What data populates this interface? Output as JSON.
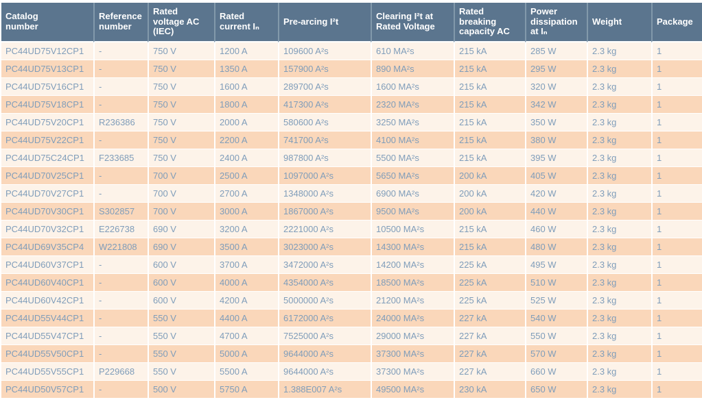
{
  "colors": {
    "header_bg": "#5B758E",
    "header_divider": "#8299AB",
    "header_text": "#FFFFFF",
    "row_light": "#FDF3E9",
    "row_dark": "#FAD7BA",
    "cell_text": "#7F9DBA"
  },
  "table": {
    "columns": [
      "Catalog number",
      "Reference number",
      "Rated voltage AC (IEC)",
      "Rated current Iₙ",
      "Pre-arcing I²t",
      "Clearing I²t at Rated Voltage",
      "Rated breaking capacity AC",
      "Power dissipation at Iₙ",
      "Weight",
      "Package"
    ],
    "rows": [
      [
        "PC44UD75V12CP1",
        "-",
        "750 V",
        "1200 A",
        "109600 A²s",
        "610 MA²s",
        "215 kA",
        "285 W",
        "2.3 kg",
        "1"
      ],
      [
        "PC44UD75V13CP1",
        "-",
        "750 V",
        "1350 A",
        "157900 A²s",
        "890 MA²s",
        "215 kA",
        "295 W",
        "2.3 kg",
        "1"
      ],
      [
        "PC44UD75V16CP1",
        "-",
        "750 V",
        "1600 A",
        "289700 A²s",
        "1600 MA²s",
        "215 kA",
        "320 W",
        "2.3 kg",
        "1"
      ],
      [
        "PC44UD75V18CP1",
        "-",
        "750 V",
        "1800 A",
        "417300 A²s",
        "2320 MA²s",
        "215 kA",
        "342 W",
        "2.3 kg",
        "1"
      ],
      [
        "PC44UD75V20CP1",
        "R236386",
        "750 V",
        "2000 A",
        "580600 A²s",
        "3250 MA²s",
        "215 kA",
        "350 W",
        "2.3 kg",
        "1"
      ],
      [
        "PC44UD75V22CP1",
        "-",
        "750 V",
        "2200 A",
        "741700 A²s",
        "4100 MA²s",
        "215 kA",
        "380 W",
        "2.3 kg",
        "1"
      ],
      [
        "PC44UD75C24CP1",
        "F233685",
        "750 V",
        "2400 A",
        "987800 A²s",
        "5500 MA²s",
        "215 kA",
        "395 W",
        "2.3 kg",
        "1"
      ],
      [
        "PC44UD70V25CP1",
        "-",
        "700 V",
        "2500 A",
        "1097000 A²s",
        "5650 MA²s",
        "200 kA",
        "405 W",
        "2.3 kg",
        "1"
      ],
      [
        "PC44UD70V27CP1",
        "-",
        "700 V",
        "2700 A",
        "1348000 A²s",
        "6900 MA²s",
        "200 kA",
        "420 W",
        "2.3 kg",
        "1"
      ],
      [
        "PC44UD70V30CP1",
        "S302857",
        "700 V",
        "3000 A",
        "1867000 A²s",
        "9500 MA²s",
        "200 kA",
        "440 W",
        "2.3 kg",
        "1"
      ],
      [
        "PC44UD70V32CP1",
        "E226738",
        "690 V",
        "3200 A",
        "2221000 A²s",
        "10500 MA²s",
        "215 kA",
        "460 W",
        "2.3 kg",
        "1"
      ],
      [
        "PC44UD69V35CP4",
        "W221808",
        "690 V",
        "3500 A",
        "3023000 A²s",
        "14300 MA²s",
        "215 kA",
        "480 W",
        "2.3 kg",
        "1"
      ],
      [
        "PC44UD60V37CP1",
        "-",
        "600 V",
        "3700 A",
        "3472000 A²s",
        "14200 MA²s",
        "225 kA",
        "495 W",
        "2.3 kg",
        "1"
      ],
      [
        "PC44UD60V40CP1",
        "-",
        "600 V",
        "4000 A",
        "4354000 A²s",
        "18500 MA²s",
        "225 kA",
        "510 W",
        "2.3 kg",
        "1"
      ],
      [
        "PC44UD60V42CP1",
        "-",
        "600 V",
        "4200 A",
        "5000000 A²s",
        "21200 MA²s",
        "225 kA",
        "525 W",
        "2.3 kg",
        "1"
      ],
      [
        "PC44UD55V44CP1",
        "-",
        "550 V",
        "4400 A",
        "6172000 A²s",
        "24000 MA²s",
        "227 kA",
        "540 W",
        "2.3 kg",
        "1"
      ],
      [
        "PC44UD55V47CP1",
        "-",
        "550 V",
        "4700 A",
        "7525000 A²s",
        "29000 MA²s",
        "227 kA",
        "550 W",
        "2.3 kg",
        "1"
      ],
      [
        "PC44UD55V50CP1",
        "-",
        "550 V",
        "5000 A",
        "9644000 A²s",
        "37300 MA²s",
        "227 kA",
        "570 W",
        "2.3 kg",
        "1"
      ],
      [
        "PC44UD55V55CP1",
        "P229668",
        "550 V",
        "5500 A",
        "9644000 A²s",
        "37300 MA²s",
        "227 kA",
        "660 W",
        "2.3 kg",
        "1"
      ],
      [
        "PC44UD50V57CP1",
        "-",
        "500 V",
        "5750 A",
        "1.388E007 A²s",
        "49500 MA²s",
        "230 kA",
        "650 W",
        "2.3 kg",
        "1"
      ]
    ]
  }
}
